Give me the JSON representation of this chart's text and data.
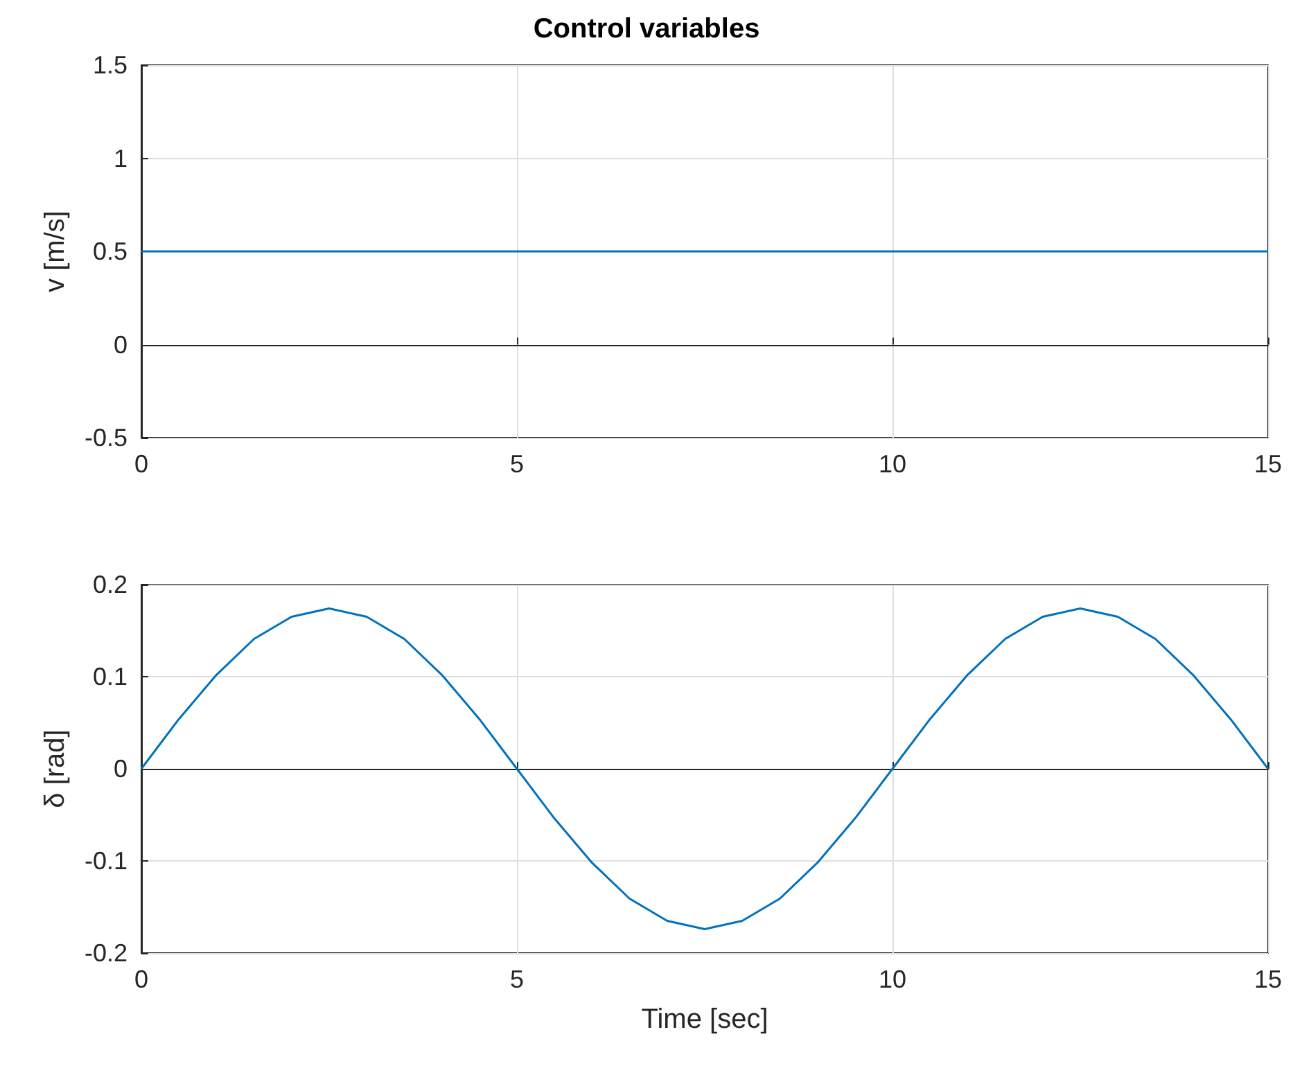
{
  "chart_data": [
    {
      "type": "line",
      "title": "Control variables",
      "ylabel": "v [m/s]",
      "x": [
        0,
        15
      ],
      "xlim": [
        0,
        15
      ],
      "xticks": [
        0,
        5,
        10,
        15
      ],
      "ylim": [
        -0.5,
        1.5
      ],
      "yticks": [
        -0.5,
        0,
        0.5,
        1,
        1.5
      ],
      "grid": true,
      "series": [
        {
          "color": "#0072bd",
          "values": [
            0.5,
            0.5
          ]
        }
      ]
    },
    {
      "type": "line",
      "xlabel": "Time [sec]",
      "ylabel": "δ [rad]",
      "x": [
        0,
        0.5,
        1,
        1.5,
        2,
        2.5,
        3,
        3.5,
        4,
        4.5,
        5,
        5.5,
        6,
        6.5,
        7,
        7.5,
        8,
        8.5,
        9,
        9.5,
        10,
        10.5,
        11,
        11.5,
        12,
        12.5,
        13,
        13.5,
        14,
        14.5,
        15
      ],
      "xlim": [
        0,
        15
      ],
      "xticks": [
        0,
        5,
        10,
        15
      ],
      "ylim": [
        -0.2,
        0.2
      ],
      "yticks": [
        -0.2,
        -0.1,
        0,
        0.1,
        0.2
      ],
      "grid": true,
      "series": [
        {
          "color": "#0072bd",
          "values": [
            0,
            0.054,
            0.102,
            0.141,
            0.165,
            0.174,
            0.165,
            0.141,
            0.102,
            0.054,
            0,
            -0.054,
            -0.102,
            -0.141,
            -0.165,
            -0.174,
            -0.165,
            -0.141,
            -0.102,
            -0.054,
            0,
            0.054,
            0.102,
            0.141,
            0.165,
            0.174,
            0.165,
            0.141,
            0.102,
            0.054,
            0
          ]
        }
      ]
    }
  ]
}
